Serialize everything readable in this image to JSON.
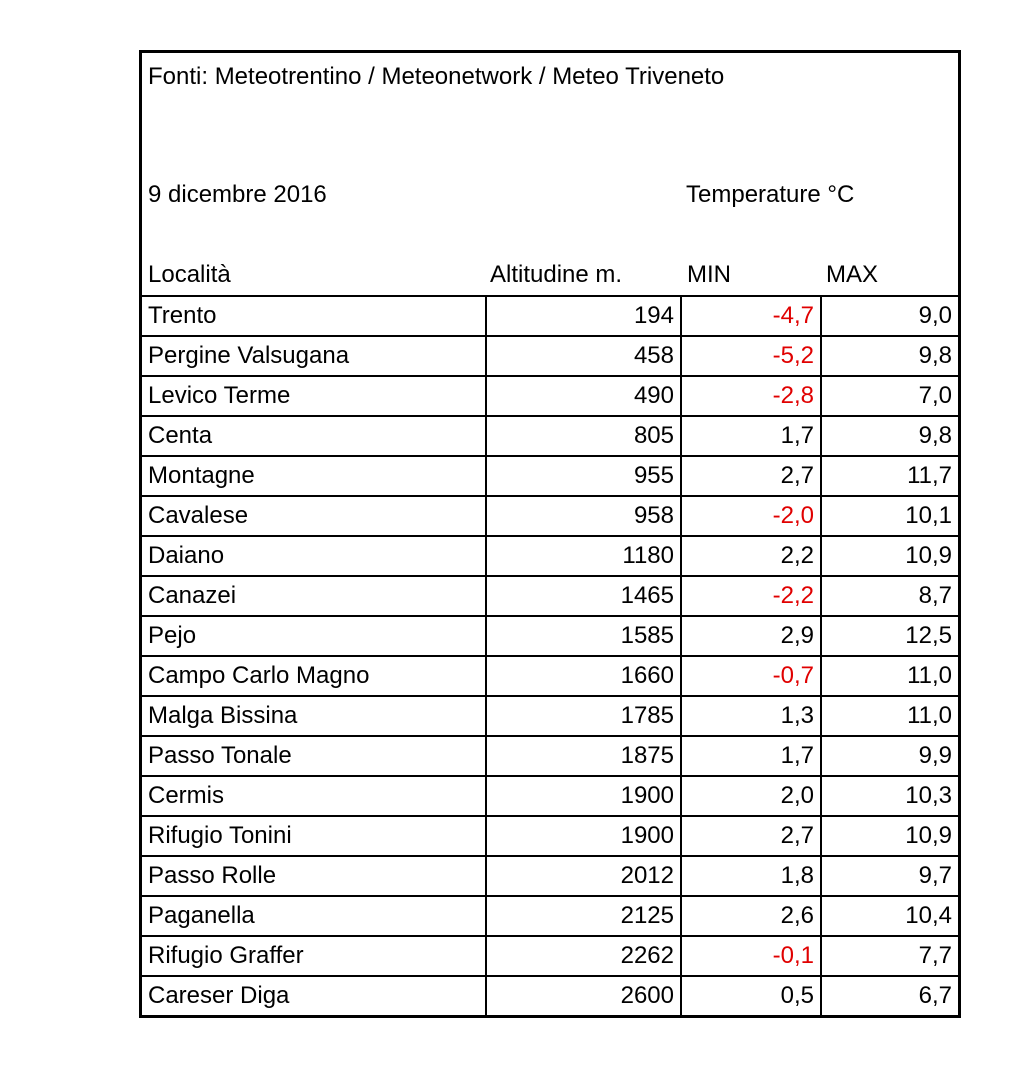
{
  "source": "Fonti: Meteotrentino / Meteonetwork / Meteo Triveneto",
  "date": "9 dicembre 2016",
  "unit_label": "Temperature °C",
  "headers": {
    "location": "Località",
    "altitude": "Altitudine m.",
    "min": "MIN",
    "max": "MAX"
  },
  "negative_color": "#e00000",
  "rows": [
    {
      "location": "Trento",
      "altitude": "194",
      "min": "-4,7",
      "max": "9,0"
    },
    {
      "location": "Pergine Valsugana",
      "altitude": "458",
      "min": "-5,2",
      "max": "9,8"
    },
    {
      "location": "Levico Terme",
      "altitude": "490",
      "min": "-2,8",
      "max": "7,0"
    },
    {
      "location": "Centa",
      "altitude": "805",
      "min": "1,7",
      "max": "9,8"
    },
    {
      "location": "Montagne",
      "altitude": "955",
      "min": "2,7",
      "max": "11,7"
    },
    {
      "location": "Cavalese",
      "altitude": "958",
      "min": "-2,0",
      "max": "10,1"
    },
    {
      "location": "Daiano",
      "altitude": "1180",
      "min": "2,2",
      "max": "10,9"
    },
    {
      "location": "Canazei",
      "altitude": "1465",
      "min": "-2,2",
      "max": "8,7"
    },
    {
      "location": "Pejo",
      "altitude": "1585",
      "min": "2,9",
      "max": "12,5"
    },
    {
      "location": "Campo Carlo Magno",
      "altitude": "1660",
      "min": "-0,7",
      "max": "11,0"
    },
    {
      "location": "Malga Bissina",
      "altitude": "1785",
      "min": "1,3",
      "max": "11,0"
    },
    {
      "location": "Passo Tonale",
      "altitude": "1875",
      "min": "1,7",
      "max": "9,9"
    },
    {
      "location": "Cermis",
      "altitude": "1900",
      "min": "2,0",
      "max": "10,3"
    },
    {
      "location": "Rifugio Tonini",
      "altitude": "1900",
      "min": "2,7",
      "max": "10,9"
    },
    {
      "location": "Passo Rolle",
      "altitude": "2012",
      "min": "1,8",
      "max": "9,7"
    },
    {
      "location": "Paganella",
      "altitude": "2125",
      "min": "2,6",
      "max": "10,4"
    },
    {
      "location": "Rifugio Graffer",
      "altitude": "2262",
      "min": "-0,1",
      "max": "7,7"
    },
    {
      "location": "Careser Diga",
      "altitude": "2600",
      "min": "0,5",
      "max": "6,7"
    }
  ]
}
